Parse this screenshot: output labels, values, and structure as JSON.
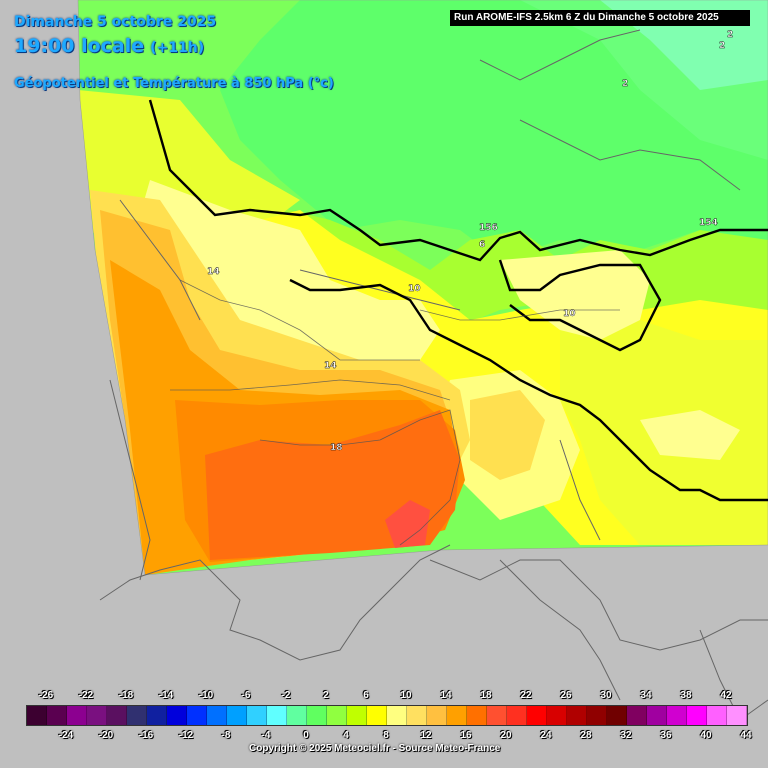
{
  "header": {
    "date": "Dimanche 5 octobre 2025",
    "time": "19:00 locale",
    "lead": "(+11h)",
    "parameter": "Géopotentiel et Température à 850 hPa (°c)",
    "run_info": "Run AROME-IFS 2.5km 6 Z du Dimanche 5 octobre 2025"
  },
  "isolines": {
    "temperature_labels": [
      "14",
      "10",
      "14",
      "18",
      "10",
      "6",
      "2",
      "2",
      "2"
    ],
    "geopotential_labels": [
      "156",
      "154"
    ]
  },
  "legend": {
    "top_ticks": [
      "-26",
      "-22",
      "-18",
      "-14",
      "-10",
      "-6",
      "-2",
      "2",
      "6",
      "10",
      "14",
      "18",
      "22",
      "26",
      "30",
      "34",
      "38",
      "42"
    ],
    "bottom_ticks": [
      "-24",
      "-20",
      "-16",
      "-12",
      "-8",
      "-4",
      "0",
      "4",
      "8",
      "12",
      "16",
      "20",
      "24",
      "28",
      "32",
      "36",
      "40",
      "44"
    ],
    "colors": [
      "#3c0030",
      "#5a0050",
      "#8c0090",
      "#7a1080",
      "#5a1060",
      "#303070",
      "#1020a0",
      "#0000dc",
      "#0030ff",
      "#0070ff",
      "#00a0ff",
      "#30d0ff",
      "#60ffff",
      "#60ffa0",
      "#60ff60",
      "#90ff40",
      "#c0ff00",
      "#ffff00",
      "#ffff80",
      "#ffe060",
      "#ffc040",
      "#ffa000",
      "#ff7000",
      "#ff5030",
      "#ff3020",
      "#ff0000",
      "#d80000",
      "#b00000",
      "#900000",
      "#700000",
      "#800060",
      "#a000a0",
      "#d000d0",
      "#ff00ff",
      "#ff60ff",
      "#ff90ff"
    ]
  },
  "copyright": "Copyright © 2025 Meteociel.fr - Source Meteo-France",
  "colors": {
    "title": "#1ea9ff",
    "background": "#bfbfbf"
  }
}
